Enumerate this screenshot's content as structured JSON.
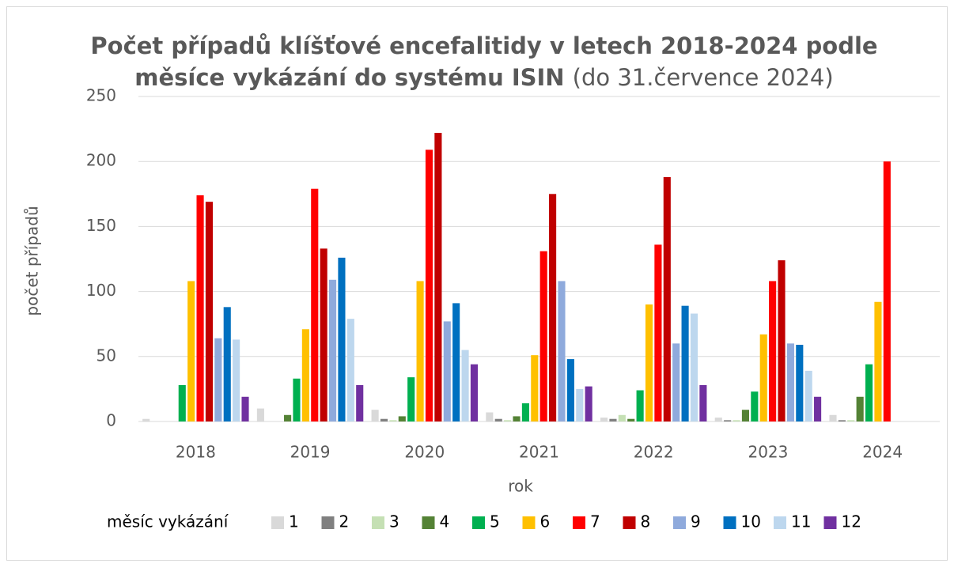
{
  "chart_data": {
    "type": "bar",
    "title": [
      "Počet případů klíšťové encefalitidy v letech 2018-2024 podle",
      "měsíce vykázání do systému ISIN"
    ],
    "title_note": "(do 31.července 2024)",
    "x_label": "rok",
    "y_label": "počet případů",
    "legend_title": "měsíc vykázání",
    "categories": [
      "2018",
      "2019",
      "2020",
      "2021",
      "2022",
      "2023",
      "2024"
    ],
    "series": [
      {
        "name": "1",
        "color": "#d9d9d9",
        "values": [
          2,
          10,
          9,
          7,
          3,
          3,
          5
        ]
      },
      {
        "name": "2",
        "color": "#808080",
        "values": [
          0,
          0,
          2,
          2,
          2,
          1,
          1
        ]
      },
      {
        "name": "3",
        "color": "#c5e0b4",
        "values": [
          0,
          0,
          1,
          1,
          5,
          1,
          1
        ]
      },
      {
        "name": "4",
        "color": "#548235",
        "values": [
          0,
          5,
          4,
          4,
          2,
          9,
          19
        ]
      },
      {
        "name": "5",
        "color": "#00b050",
        "values": [
          28,
          33,
          34,
          14,
          24,
          23,
          44
        ]
      },
      {
        "name": "6",
        "color": "#ffc000",
        "values": [
          108,
          71,
          108,
          51,
          90,
          67,
          92
        ]
      },
      {
        "name": "7",
        "color": "#ff0000",
        "values": [
          174,
          179,
          209,
          131,
          136,
          108,
          200
        ]
      },
      {
        "name": "8",
        "color": "#c00000",
        "values": [
          169,
          133,
          222,
          175,
          188,
          124,
          null
        ]
      },
      {
        "name": "9",
        "color": "#8faadc",
        "values": [
          64,
          109,
          77,
          108,
          60,
          60,
          null
        ]
      },
      {
        "name": "10",
        "color": "#0070c0",
        "values": [
          88,
          126,
          91,
          48,
          89,
          59,
          null
        ]
      },
      {
        "name": "11",
        "color": "#bdd7ee",
        "values": [
          63,
          79,
          55,
          25,
          83,
          39,
          null
        ]
      },
      {
        "name": "12",
        "color": "#7030a0",
        "values": [
          19,
          28,
          44,
          27,
          28,
          19,
          null
        ]
      }
    ],
    "ylim": [
      0,
      250
    ],
    "yticks": [
      0,
      50,
      100,
      150,
      200,
      250
    ],
    "grid": true,
    "legend": "bottom"
  }
}
